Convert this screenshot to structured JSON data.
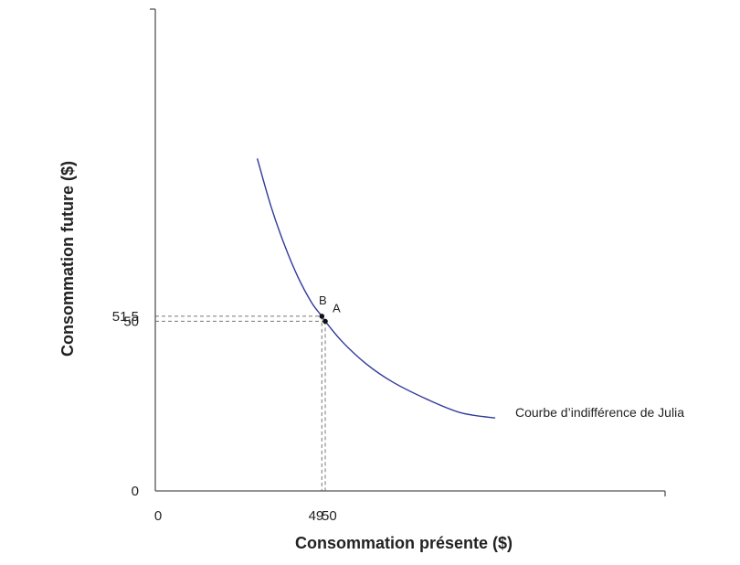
{
  "chart_data": {
    "type": "line",
    "title": "",
    "xlabel": "Consommation présente ($)",
    "ylabel": "Consommation future ($)",
    "xlim": [
      0,
      150
    ],
    "ylim": [
      0,
      142
    ],
    "x_ticks": [
      {
        "value": 0,
        "label": "0"
      },
      {
        "value": 49,
        "label": "49"
      },
      {
        "value": 50,
        "label": "50"
      }
    ],
    "y_ticks": [
      {
        "value": 0,
        "label": "0"
      },
      {
        "value": 50,
        "label": "50"
      },
      {
        "value": 51.5,
        "label": "51,5"
      }
    ],
    "series": [
      {
        "name": "Courbe d’indifférence de Julia",
        "x": [
          30,
          34,
          38,
          42,
          46,
          49,
          50,
          55,
          62,
          70,
          80,
          90,
          100
        ],
        "y": [
          98,
          84,
          72.5,
          63,
          55.5,
          51.5,
          50,
          44,
          37.5,
          32,
          27,
          23,
          21.5
        ]
      }
    ],
    "points": [
      {
        "label": "A",
        "x": 50,
        "y": 50
      },
      {
        "label": "B",
        "x": 49,
        "y": 51.5
      }
    ],
    "colors": {
      "curve": "#2f3a99",
      "axis": "#555555",
      "guide": "#777777",
      "point": "#111111"
    }
  }
}
